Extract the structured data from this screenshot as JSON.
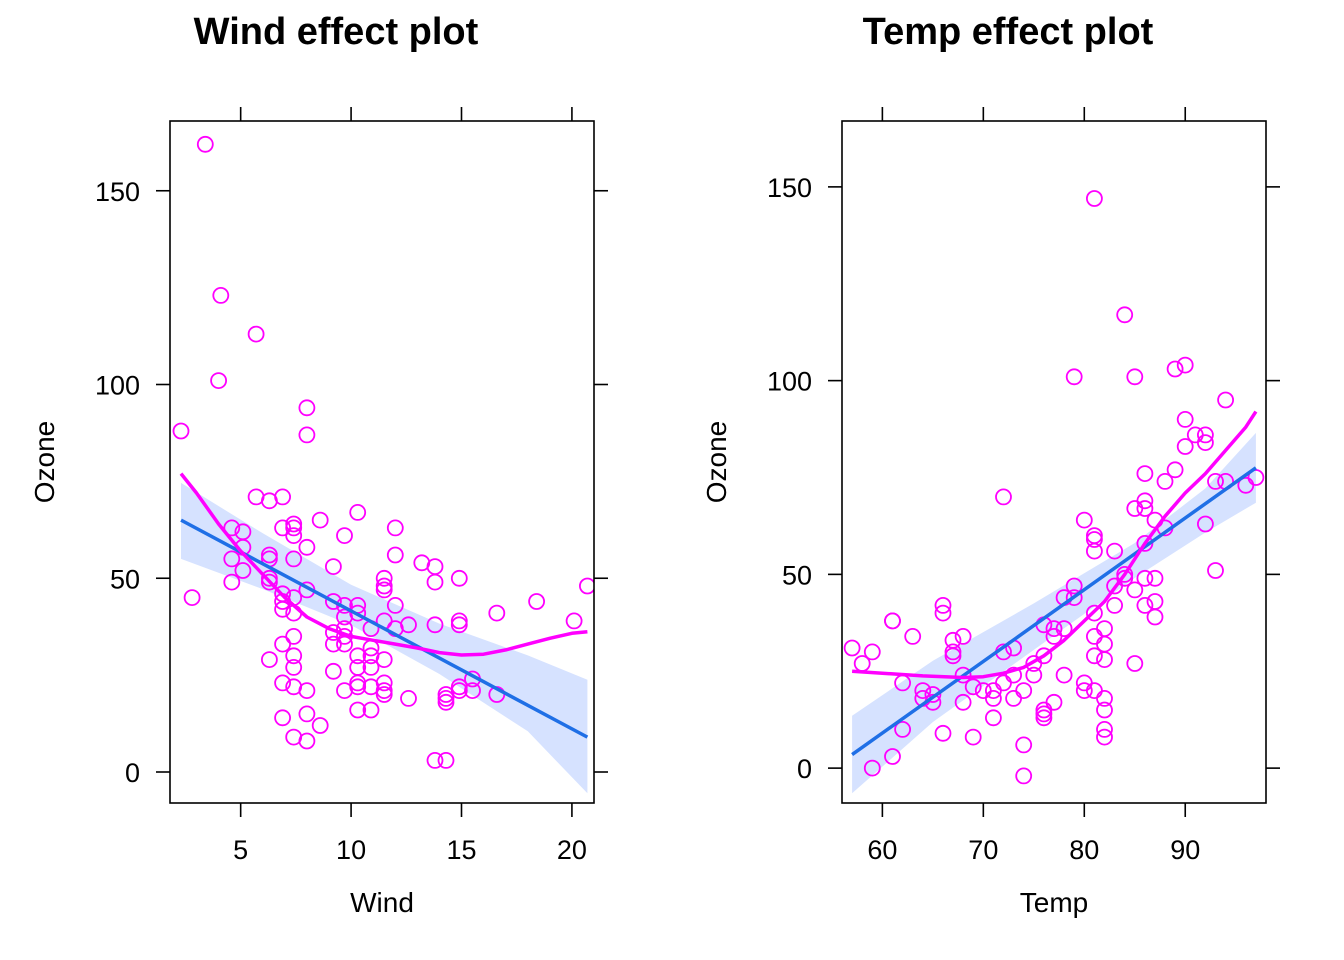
{
  "colors": {
    "points": "#ff00ff",
    "smoother": "#ff00ff",
    "fit": "#1f6fe6",
    "band": "#d6e2ff",
    "axes": "#000000"
  },
  "chart_data": [
    {
      "type": "scatter",
      "title": "Wind effect plot",
      "xlabel": "Wind",
      "ylabel": "Ozone",
      "xlim": [
        1.8,
        21.0
      ],
      "ylim": [
        -8,
        168
      ],
      "xticks": [
        5,
        10,
        15,
        20
      ],
      "yticks": [
        0,
        50,
        100,
        150
      ],
      "points": [
        [
          2.3,
          88
        ],
        [
          2.8,
          45
        ],
        [
          3.4,
          162
        ],
        [
          4.0,
          101
        ],
        [
          4.1,
          123
        ],
        [
          4.6,
          49
        ],
        [
          4.6,
          55
        ],
        [
          4.6,
          63
        ],
        [
          5.1,
          62
        ],
        [
          5.1,
          52
        ],
        [
          5.1,
          58
        ],
        [
          5.7,
          71
        ],
        [
          5.7,
          113
        ],
        [
          6.3,
          70
        ],
        [
          6.3,
          56
        ],
        [
          6.3,
          55
        ],
        [
          6.3,
          50
        ],
        [
          6.3,
          49
        ],
        [
          6.3,
          29
        ],
        [
          6.9,
          71
        ],
        [
          6.9,
          63
        ],
        [
          6.9,
          46
        ],
        [
          6.9,
          44
        ],
        [
          6.9,
          42
        ],
        [
          6.9,
          33
        ],
        [
          6.9,
          23
        ],
        [
          6.9,
          14
        ],
        [
          7.4,
          64
        ],
        [
          7.4,
          63
        ],
        [
          7.4,
          61
        ],
        [
          7.4,
          55
        ],
        [
          7.4,
          45
        ],
        [
          7.4,
          41
        ],
        [
          7.4,
          35
        ],
        [
          7.4,
          30
        ],
        [
          7.4,
          27
        ],
        [
          7.4,
          22
        ],
        [
          7.4,
          9
        ],
        [
          8.0,
          94
        ],
        [
          8.0,
          87
        ],
        [
          8.0,
          58
        ],
        [
          8.0,
          47
        ],
        [
          8.0,
          21
        ],
        [
          8.0,
          15
        ],
        [
          8.0,
          8
        ],
        [
          8.6,
          65
        ],
        [
          8.6,
          12
        ],
        [
          9.2,
          53
        ],
        [
          9.2,
          44
        ],
        [
          9.2,
          36
        ],
        [
          9.2,
          33
        ],
        [
          9.2,
          26
        ],
        [
          9.7,
          61
        ],
        [
          9.7,
          43
        ],
        [
          9.7,
          40
        ],
        [
          9.7,
          37
        ],
        [
          9.7,
          35
        ],
        [
          9.7,
          33
        ],
        [
          9.7,
          21
        ],
        [
          10.3,
          67
        ],
        [
          10.3,
          43
        ],
        [
          10.3,
          41
        ],
        [
          10.3,
          30
        ],
        [
          10.3,
          27
        ],
        [
          10.3,
          23
        ],
        [
          10.3,
          22
        ],
        [
          10.3,
          16
        ],
        [
          10.9,
          37
        ],
        [
          10.9,
          32
        ],
        [
          10.9,
          30
        ],
        [
          10.9,
          27
        ],
        [
          10.9,
          22
        ],
        [
          10.9,
          16
        ],
        [
          11.5,
          50
        ],
        [
          11.5,
          48
        ],
        [
          11.5,
          47
        ],
        [
          11.5,
          39
        ],
        [
          11.5,
          29
        ],
        [
          11.5,
          23
        ],
        [
          11.5,
          21
        ],
        [
          11.5,
          20
        ],
        [
          12.0,
          63
        ],
        [
          12.0,
          56
        ],
        [
          12.0,
          43
        ],
        [
          12.0,
          37
        ],
        [
          12.6,
          38
        ],
        [
          12.6,
          19
        ],
        [
          13.2,
          54
        ],
        [
          13.8,
          53
        ],
        [
          13.8,
          49
        ],
        [
          13.8,
          38
        ],
        [
          13.8,
          3
        ],
        [
          14.3,
          20
        ],
        [
          14.3,
          19
        ],
        [
          14.3,
          18
        ],
        [
          14.3,
          3
        ],
        [
          14.9,
          50
        ],
        [
          14.9,
          39
        ],
        [
          14.9,
          38
        ],
        [
          14.9,
          22
        ],
        [
          14.9,
          21
        ],
        [
          15.5,
          24
        ],
        [
          15.5,
          21
        ],
        [
          16.6,
          41
        ],
        [
          16.6,
          20
        ],
        [
          18.4,
          44
        ],
        [
          20.1,
          39
        ],
        [
          20.7,
          48
        ]
      ],
      "fit": {
        "x": [
          2.3,
          20.7
        ],
        "y": [
          65,
          9
        ]
      },
      "band": {
        "x": [
          2.3,
          6,
          10,
          14,
          18,
          20.7
        ],
        "lower": [
          55,
          47.2,
          37.9,
          25.3,
          10.5,
          -5.5
        ],
        "upper": [
          74.6,
          61.6,
          48.3,
          38.3,
          30.1,
          23.8
        ]
      },
      "smoother": {
        "x": [
          2.3,
          3,
          4,
          5,
          6,
          7,
          8,
          9,
          10,
          11,
          12,
          13,
          14,
          15,
          16,
          17,
          18,
          19,
          20,
          20.7
        ],
        "y": [
          77,
          72,
          64,
          57,
          51,
          45,
          40,
          37,
          35,
          34,
          33,
          32,
          30.8,
          30.2,
          30.4,
          31.5,
          33,
          34.5,
          35.8,
          36.2
        ]
      }
    },
    {
      "type": "scatter",
      "title": "Temp effect plot",
      "xlabel": "Temp",
      "ylabel": "Ozone",
      "xlim": [
        56,
        98
      ],
      "ylim": [
        -9,
        167
      ],
      "xticks": [
        60,
        70,
        80,
        90
      ],
      "yticks": [
        0,
        50,
        100,
        150
      ],
      "points": [
        [
          57,
          31
        ],
        [
          58,
          27
        ],
        [
          59,
          30
        ],
        [
          59,
          0
        ],
        [
          61,
          38
        ],
        [
          61,
          38
        ],
        [
          61,
          3
        ],
        [
          62,
          22
        ],
        [
          62,
          10
        ],
        [
          63,
          34
        ],
        [
          64,
          20
        ],
        [
          64,
          18
        ],
        [
          65,
          19
        ],
        [
          65,
          17
        ],
        [
          66,
          42
        ],
        [
          66,
          40
        ],
        [
          66,
          9
        ],
        [
          67,
          33
        ],
        [
          67,
          30
        ],
        [
          67,
          29
        ],
        [
          68,
          34
        ],
        [
          68,
          24
        ],
        [
          68,
          17
        ],
        [
          69,
          21
        ],
        [
          69,
          8
        ],
        [
          70,
          20
        ],
        [
          71,
          20
        ],
        [
          71,
          18
        ],
        [
          71,
          13
        ],
        [
          72,
          70
        ],
        [
          72,
          30
        ],
        [
          72,
          22
        ],
        [
          73,
          31
        ],
        [
          73,
          24
        ],
        [
          73,
          18
        ],
        [
          74,
          20
        ],
        [
          74,
          6
        ],
        [
          74,
          -2
        ],
        [
          75,
          27
        ],
        [
          75,
          24
        ],
        [
          76,
          37
        ],
        [
          76,
          29
        ],
        [
          76,
          15
        ],
        [
          76,
          14
        ],
        [
          76,
          13
        ],
        [
          77,
          36
        ],
        [
          77,
          34
        ],
        [
          77,
          17
        ],
        [
          78,
          44
        ],
        [
          78,
          36
        ],
        [
          78,
          24
        ],
        [
          79,
          101
        ],
        [
          79,
          47
        ],
        [
          79,
          44
        ],
        [
          80,
          64
        ],
        [
          80,
          22
        ],
        [
          80,
          20
        ],
        [
          81,
          147
        ],
        [
          81,
          60
        ],
        [
          81,
          59
        ],
        [
          81,
          56
        ],
        [
          81,
          40
        ],
        [
          81,
          34
        ],
        [
          81,
          29
        ],
        [
          81,
          20
        ],
        [
          82,
          36
        ],
        [
          82,
          32
        ],
        [
          82,
          28
        ],
        [
          82,
          18
        ],
        [
          82,
          15
        ],
        [
          82,
          10
        ],
        [
          82,
          8
        ],
        [
          83,
          56
        ],
        [
          83,
          47
        ],
        [
          83,
          42
        ],
        [
          84,
          117
        ],
        [
          84,
          50
        ],
        [
          84,
          49
        ],
        [
          85,
          101
        ],
        [
          85,
          67
        ],
        [
          85,
          46
        ],
        [
          85,
          27
        ],
        [
          86,
          76
        ],
        [
          86,
          69
        ],
        [
          86,
          67
        ],
        [
          86,
          58
        ],
        [
          86,
          49
        ],
        [
          86,
          42
        ],
        [
          87,
          64
        ],
        [
          87,
          49
        ],
        [
          87,
          43
        ],
        [
          87,
          39
        ],
        [
          88,
          74
        ],
        [
          88,
          62
        ],
        [
          89,
          103
        ],
        [
          89,
          77
        ],
        [
          90,
          104
        ],
        [
          90,
          90
        ],
        [
          90,
          83
        ],
        [
          91,
          86
        ],
        [
          92,
          86
        ],
        [
          92,
          84
        ],
        [
          92,
          63
        ],
        [
          93,
          74
        ],
        [
          93,
          51
        ],
        [
          94,
          95
        ],
        [
          94,
          74
        ],
        [
          96,
          73
        ],
        [
          97,
          75
        ]
      ],
      "fit": {
        "x": [
          57,
          97
        ],
        "y": [
          3.5,
          77.5
        ]
      },
      "band": {
        "x": [
          57,
          65,
          75,
          85,
          92,
          97
        ],
        "lower": [
          -6.5,
          11.9,
          30.5,
          49.1,
          60.8,
          68.5
        ],
        "upper": [
          13.5,
          27.7,
          42.5,
          58.1,
          72.2,
          86.5
        ]
      },
      "smoother": {
        "x": [
          57,
          60,
          64,
          68,
          70,
          72,
          74,
          76,
          78,
          80,
          82,
          84,
          86,
          88,
          90,
          92,
          94,
          96,
          97
        ],
        "y": [
          25,
          24.5,
          23.8,
          23.4,
          23.6,
          24.5,
          26,
          29,
          33,
          38,
          43,
          50,
          58,
          65,
          71,
          76,
          82,
          88,
          92
        ]
      }
    }
  ]
}
